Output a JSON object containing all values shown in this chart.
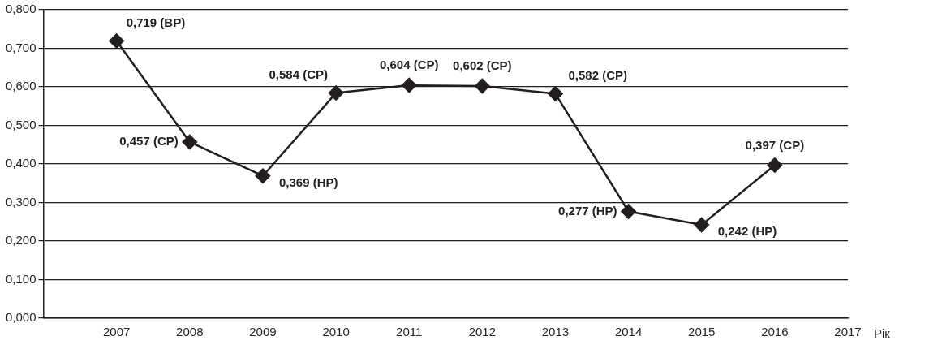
{
  "chart_data": {
    "type": "line",
    "xlabel": "Рік",
    "x": [
      2007,
      2008,
      2009,
      2010,
      2011,
      2012,
      2013,
      2014,
      2015,
      2016
    ],
    "series": [
      {
        "color": "#231f20",
        "values": [
          0.719,
          0.457,
          0.369,
          0.584,
          0.604,
          0.602,
          0.582,
          0.277,
          0.242,
          0.397
        ],
        "value_labels": [
          "0,719 (ВР)",
          "0,457 (СР)",
          "0,369 (НР)",
          "0,584 (СР)",
          "0,604 (СР)",
          "0,602 (СР)",
          "0,582 (СР)",
          "0,277 (НР)",
          "0,242 (НР)",
          "0,397 (СР)"
        ]
      }
    ],
    "xlim": [
      2006,
      2017
    ],
    "xticks": [
      2007,
      2008,
      2009,
      2010,
      2011,
      2012,
      2013,
      2014,
      2015,
      2016,
      2017
    ],
    "ylim": [
      0,
      0.8
    ],
    "yticks": [
      {
        "value": 0,
        "label": "0,000"
      },
      {
        "value": 0.1,
        "label": "0,100"
      },
      {
        "value": 0.2,
        "label": "0,200"
      },
      {
        "value": 0.3,
        "label": "0,300"
      },
      {
        "value": 0.4,
        "label": "0,400"
      },
      {
        "value": 0.5,
        "label": "0,500"
      },
      {
        "value": 0.6,
        "label": "0,600"
      },
      {
        "value": 0.7,
        "label": "0,700"
      },
      {
        "value": 0.8,
        "label": "0,800"
      }
    ],
    "grid": "y",
    "marker": "diamond",
    "line_style": "solid",
    "legend": false
  }
}
